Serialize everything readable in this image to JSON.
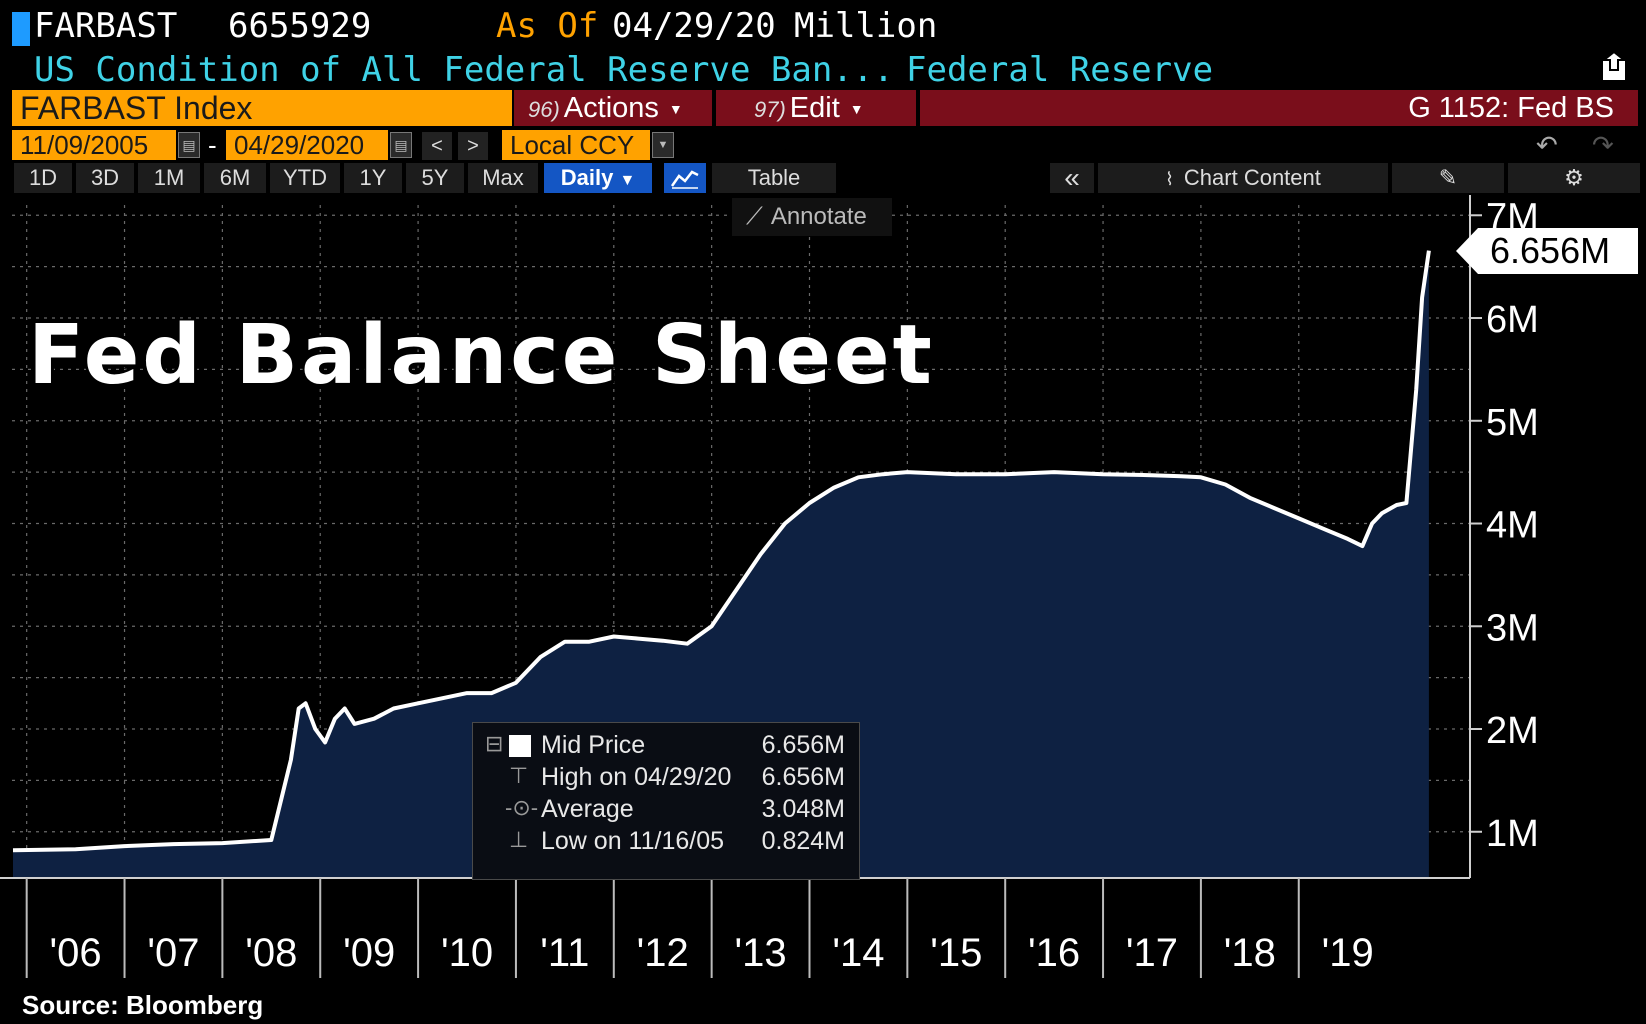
{
  "header": {
    "ticker": "FARBAST",
    "last_value": "6655929",
    "as_of_label": "As Of",
    "as_of_date": "04/29/20",
    "units": "Million",
    "description": "US Condition of All Federal Reserve Ban...",
    "source_name": "Federal Reserve"
  },
  "toolbar": {
    "security": "FARBAST Index",
    "actions_num": "96)",
    "actions_label": "Actions",
    "edit_num": "97)",
    "edit_label": "Edit",
    "page_id": "G 1152: Fed BS",
    "start_date": "11/09/2005",
    "date_sep": "-",
    "end_date": "04/29/2020",
    "currency": "Local CCY",
    "prev_btn": "<",
    "next_btn": ">"
  },
  "period_tabs": [
    "1D",
    "3D",
    "1M",
    "6M",
    "YTD",
    "1Y",
    "5Y",
    "Max"
  ],
  "frequency": "Daily",
  "table_label": "Table",
  "collapse_label": "«",
  "chart_content_label": "Chart Content",
  "annotate_label": "Annotate",
  "price_badge": "6.656M",
  "chart_title_overlay": "Fed Balance Sheet",
  "legend": {
    "mid_label": "Mid Price",
    "mid_value": "6.656M",
    "high_label": "High on 04/29/20",
    "high_value": "6.656M",
    "avg_label": "Average",
    "avg_value": "3.048M",
    "low_label": "Low on 11/16/05",
    "low_value": "0.824M"
  },
  "source": "Source: Bloomberg",
  "colors": {
    "background": "#000000",
    "area_fill": "#0e2142",
    "line": "#ffffff",
    "grid": "#6a6a6a",
    "accent_orange": "#ffa200",
    "accent_red": "#7a0e1b",
    "accent_blue": "#1456c4",
    "cyan_text": "#3fd2e6"
  },
  "chart_data": {
    "type": "area",
    "y_tick_labels": [
      "1M",
      "2M",
      "3M",
      "4M",
      "5M",
      "6M",
      "7M"
    ],
    "y_ticks": [
      1,
      2,
      3,
      4,
      5,
      6,
      7
    ],
    "ylim": [
      0.55,
      7.1
    ],
    "x_tick_labels": [
      "'06",
      "'07",
      "'08",
      "'09",
      "'10",
      "'11",
      "'12",
      "'13",
      "'14",
      "'15",
      "'16",
      "'17",
      "'18",
      "'19"
    ],
    "x_ticks": [
      2006,
      2007,
      2008,
      2009,
      2010,
      2011,
      2012,
      2013,
      2014,
      2015,
      2016,
      2017,
      2018,
      2019
    ],
    "xlim": [
      2005.85,
      2020.75
    ],
    "grid": true,
    "series": [
      {
        "x": [
          2005.86,
          2006.5,
          2007.0,
          2007.5,
          2008.0,
          2008.5,
          2008.7,
          2008.78,
          2008.85,
          2008.95,
          2009.05,
          2009.15,
          2009.25,
          2009.35,
          2009.55,
          2009.75,
          2010.0,
          2010.25,
          2010.5,
          2010.75,
          2011.0,
          2011.25,
          2011.5,
          2011.75,
          2012.0,
          2012.25,
          2012.5,
          2012.75,
          2013.0,
          2013.25,
          2013.5,
          2013.75,
          2014.0,
          2014.25,
          2014.5,
          2014.75,
          2015.0,
          2015.5,
          2016.0,
          2016.5,
          2017.0,
          2017.5,
          2017.8,
          2018.0,
          2018.25,
          2018.5,
          2018.75,
          2019.0,
          2019.25,
          2019.5,
          2019.65,
          2019.75,
          2019.85,
          2020.0,
          2020.1,
          2020.2,
          2020.26,
          2020.33
        ],
        "y": [
          0.82,
          0.83,
          0.86,
          0.88,
          0.89,
          0.92,
          1.7,
          2.2,
          2.25,
          2.0,
          1.87,
          2.1,
          2.2,
          2.05,
          2.1,
          2.2,
          2.25,
          2.3,
          2.35,
          2.35,
          2.45,
          2.7,
          2.85,
          2.85,
          2.9,
          2.88,
          2.86,
          2.83,
          3.0,
          3.35,
          3.7,
          4.0,
          4.2,
          4.35,
          4.45,
          4.48,
          4.5,
          4.48,
          4.48,
          4.5,
          4.48,
          4.47,
          4.46,
          4.45,
          4.38,
          4.25,
          4.15,
          4.05,
          3.95,
          3.85,
          3.78,
          4.0,
          4.1,
          4.18,
          4.2,
          5.3,
          6.2,
          6.656
        ]
      }
    ]
  }
}
